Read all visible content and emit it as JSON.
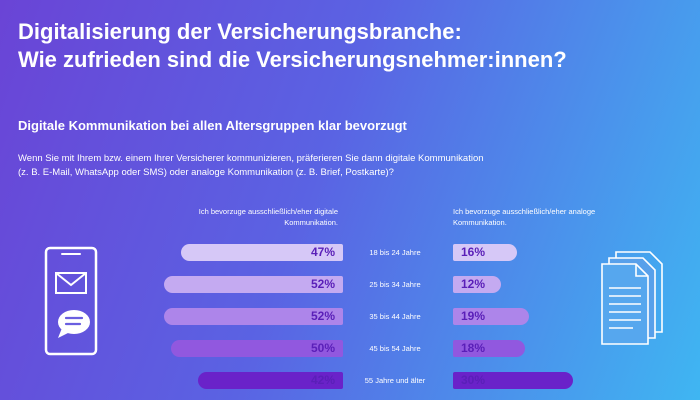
{
  "title": {
    "line1": "Digitalisierung der Versicherungsbranche:",
    "line2": "Wie zufrieden sind die Versicherungsnehmer:innen?"
  },
  "subtitle": "Digitale Kommunikation bei allen Altersgruppen klar bevorzugt",
  "question": {
    "line1": "Wenn Sie mit Ihrem bzw. einem Ihrer Versicherer kommunizieren, präferieren Sie dann digitale Kommunikation",
    "line2": "(z. B. E-Mail, WhatsApp oder SMS) oder analoge Kommunikation (z. B. Brief, Postkarte)?"
  },
  "colors": {
    "row_fills": [
      "#d6c8f7",
      "#c4aaf1",
      "#ad85ea",
      "#9158df",
      "#6a22c9"
    ],
    "value_text": "#5a1fb8"
  },
  "chart_data": {
    "type": "bar",
    "orientation": "horizontal-diverging",
    "categories": [
      "18 bis 24 Jahre",
      "25 bis 34 Jahre",
      "35 bis 44 Jahre",
      "45 bis 54 Jahre",
      "55 Jahre und älter"
    ],
    "series": [
      {
        "name": "Ich bevorzuge ausschließlich/eher digitale Kommunikation.",
        "values": [
          47,
          52,
          52,
          50,
          42
        ],
        "labels": [
          "47%",
          "52%",
          "52%",
          "50%",
          "42%"
        ]
      },
      {
        "name": "Ich bevorzuge ausschließlich/eher analoge Kommunikation.",
        "values": [
          16,
          12,
          19,
          18,
          30
        ],
        "labels": [
          "16%",
          "12%",
          "19%",
          "18%",
          "30%"
        ]
      }
    ],
    "unit": "%",
    "grid": false
  },
  "icons": {
    "left": [
      "smartphone-icon",
      "envelope-icon",
      "chat-bubble-icon"
    ],
    "right": [
      "documents-icon"
    ]
  }
}
